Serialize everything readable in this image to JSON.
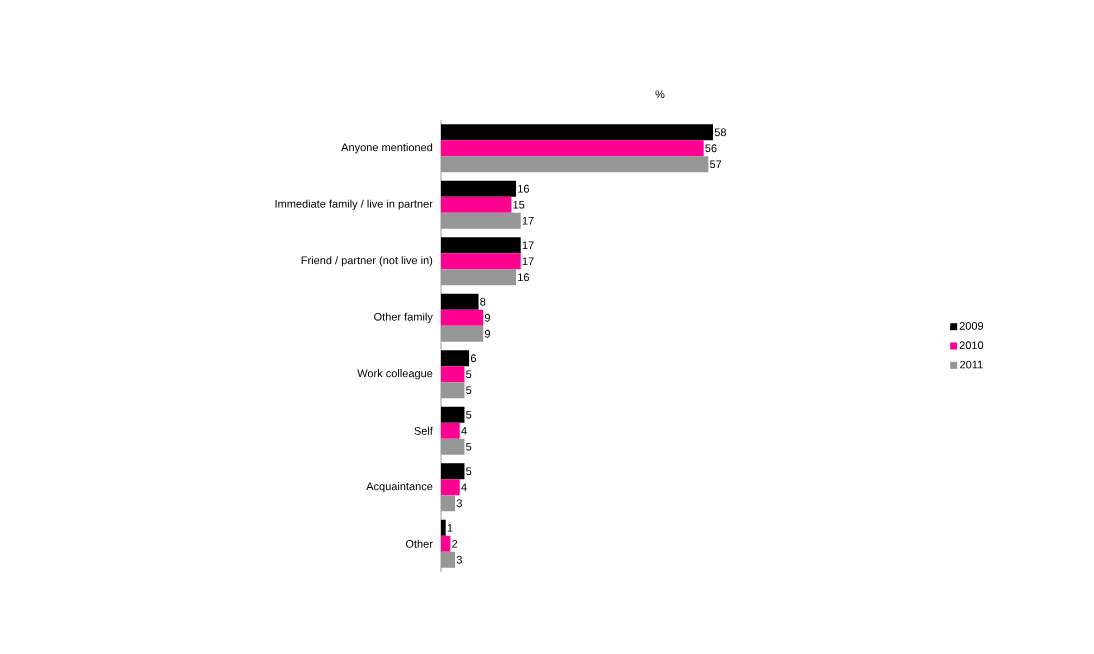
{
  "chart_data": {
    "type": "bar",
    "orientation": "horizontal",
    "xlabel": "%",
    "categories": [
      "Anyone mentioned",
      "Immediate family / live in partner",
      "Friend / partner (not live in)",
      "Other family",
      "Work colleague",
      "Self",
      "Acquaintance",
      "Other"
    ],
    "series": [
      {
        "name": "2009",
        "color": "#000000",
        "values": [
          58,
          16,
          17,
          8,
          6,
          5,
          5,
          1
        ]
      },
      {
        "name": "2010",
        "color": "#ff0090",
        "values": [
          56,
          15,
          17,
          9,
          5,
          4,
          4,
          2
        ]
      },
      {
        "name": "2011",
        "color": "#969696",
        "values": [
          57,
          17,
          16,
          9,
          5,
          5,
          3,
          3
        ]
      }
    ],
    "data_labels": true,
    "legend": "right"
  }
}
